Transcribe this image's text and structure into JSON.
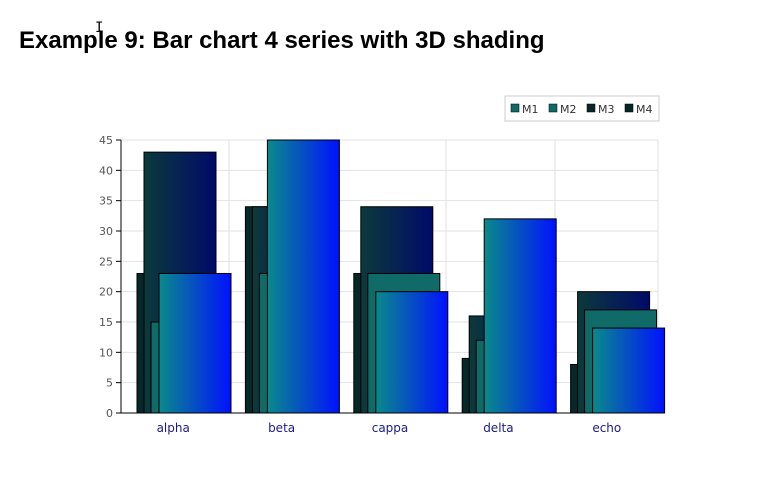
{
  "page": {
    "title": "Example 9: Bar chart 4 series with 3D shading",
    "cursor_glyph": "I"
  },
  "chart_data": {
    "type": "bar",
    "categories": [
      "alpha",
      "beta",
      "cappa",
      "delta",
      "echo"
    ],
    "series": [
      {
        "name": "M1",
        "values": [
          15,
          23,
          23,
          12,
          17
        ],
        "color_left": "#0f6a68",
        "color_right": "#0f6a68"
      },
      {
        "name": "M2",
        "values": [
          23,
          45,
          20,
          32,
          14
        ],
        "color_left": "#0a8a8a",
        "color_right": "#0011ff"
      },
      {
        "name": "M3",
        "values": [
          43,
          34,
          34,
          16,
          20
        ],
        "color_left": "#0c3a3a",
        "color_right": "#000a6a"
      },
      {
        "name": "M4",
        "values": [
          23,
          34,
          23,
          9,
          8
        ],
        "color_left": "#062828",
        "color_right": "#062828"
      }
    ],
    "draw_order": [
      "M4",
      "M3",
      "M1",
      "M2"
    ],
    "ylim": [
      0,
      45
    ],
    "yticks": [
      0,
      5,
      10,
      15,
      20,
      25,
      30,
      35,
      40,
      45
    ],
    "grid": true,
    "legend_position": "top-right",
    "legend_colors": [
      "#0f6a68",
      "#0f6a68",
      "#062828",
      "#062828"
    ]
  }
}
